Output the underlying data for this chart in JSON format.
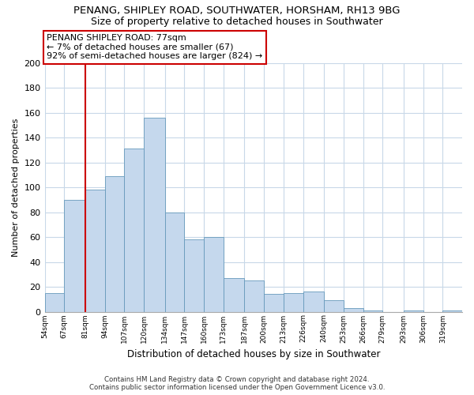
{
  "title": "PENANG, SHIPLEY ROAD, SOUTHWATER, HORSHAM, RH13 9BG",
  "subtitle": "Size of property relative to detached houses in Southwater",
  "xlabel": "Distribution of detached houses by size in Southwater",
  "ylabel": "Number of detached properties",
  "bar_labels": [
    "54sqm",
    "67sqm",
    "81sqm",
    "94sqm",
    "107sqm",
    "120sqm",
    "134sqm",
    "147sqm",
    "160sqm",
    "173sqm",
    "187sqm",
    "200sqm",
    "213sqm",
    "226sqm",
    "240sqm",
    "253sqm",
    "266sqm",
    "279sqm",
    "293sqm",
    "306sqm",
    "319sqm"
  ],
  "bar_heights": [
    15,
    90,
    98,
    109,
    131,
    156,
    80,
    58,
    60,
    27,
    25,
    14,
    15,
    16,
    9,
    3,
    1,
    0,
    1,
    0,
    1
  ],
  "bar_color": "#c5d8ed",
  "bar_edge_color": "#6699bb",
  "ylim": [
    0,
    200
  ],
  "yticks": [
    0,
    20,
    40,
    60,
    80,
    100,
    120,
    140,
    160,
    180,
    200
  ],
  "annotation_line1": "PENANG SHIPLEY ROAD: 77sqm",
  "annotation_line2": "← 7% of detached houses are smaller (67)",
  "annotation_line3": "92% of semi-detached houses are larger (824) →",
  "redline_x": 81,
  "footer_line1": "Contains HM Land Registry data © Crown copyright and database right 2024.",
  "footer_line2": "Contains public sector information licensed under the Open Government Licence v3.0.",
  "bg_color": "#ffffff",
  "grid_color": "#c8d8e8"
}
